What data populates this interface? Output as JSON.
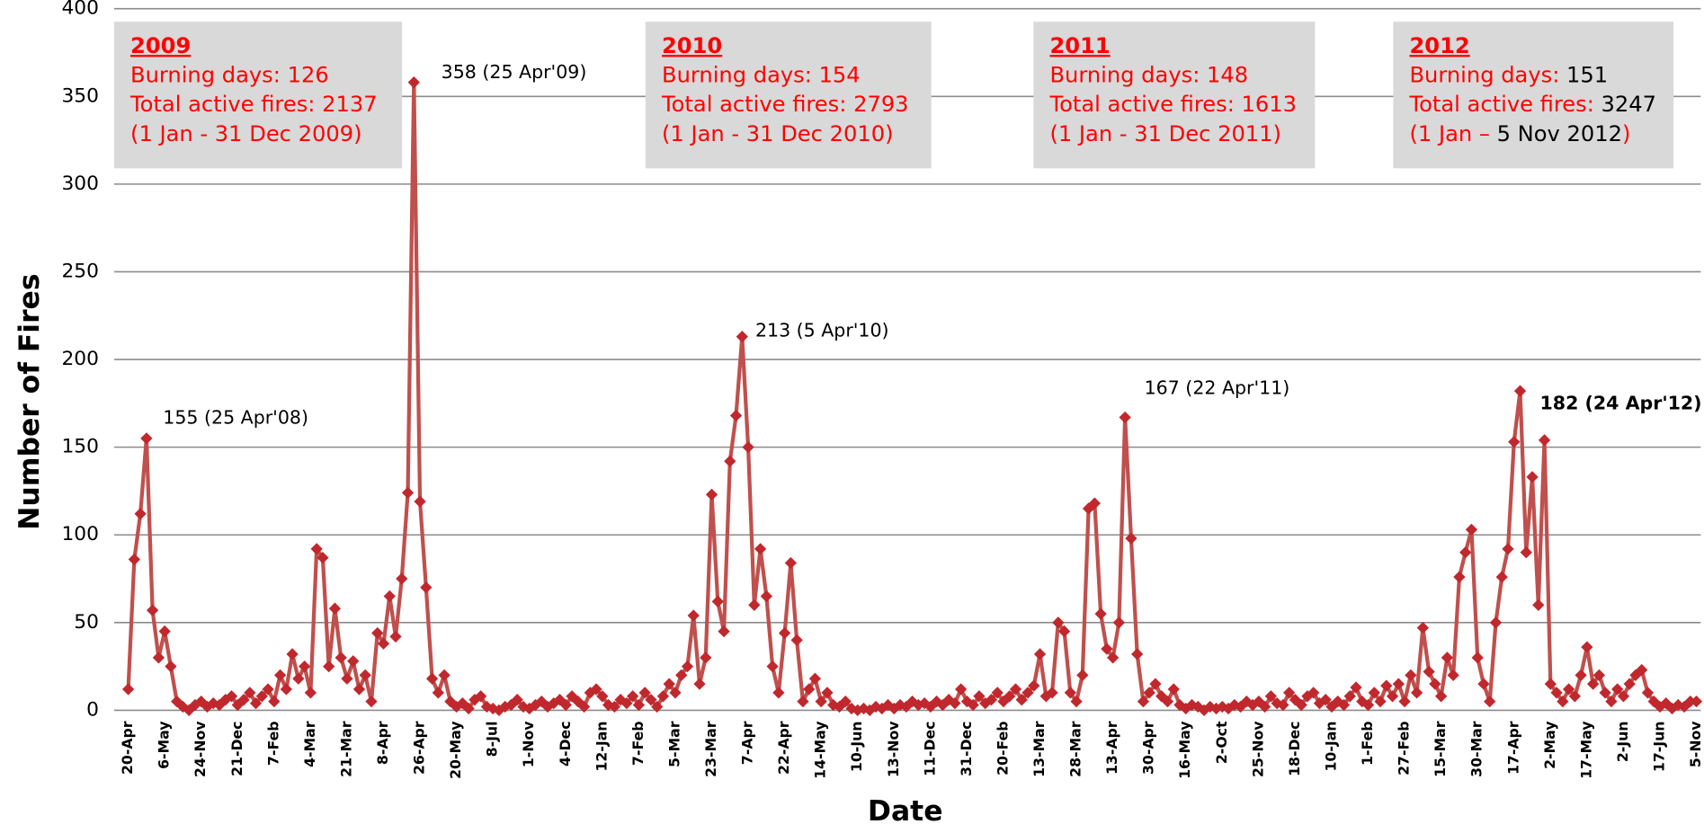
{
  "chart_data": {
    "type": "line",
    "color": "#c0282d",
    "line_color": "#c0504d",
    "xlabel": "Date",
    "ylabel": "Number of Fires",
    "ylim": [
      0,
      400
    ],
    "yticks": [
      0,
      50,
      100,
      150,
      200,
      250,
      300,
      350,
      400
    ],
    "grid": true,
    "categories": [
      "20-Apr",
      null,
      null,
      null,
      null,
      null,
      "6-May",
      null,
      null,
      null,
      null,
      null,
      "24-Nov",
      null,
      null,
      null,
      null,
      null,
      "21-Dec",
      null,
      null,
      null,
      null,
      null,
      "7-Feb",
      null,
      null,
      null,
      null,
      null,
      "4-Mar",
      null,
      null,
      null,
      null,
      null,
      "21-Mar",
      null,
      null,
      null,
      null,
      null,
      "8-Apr",
      null,
      null,
      null,
      null,
      null,
      "26-Apr",
      null,
      null,
      null,
      null,
      null,
      "20-May",
      null,
      null,
      null,
      null,
      null,
      "8-Jul",
      null,
      null,
      null,
      null,
      null,
      "1-Nov",
      null,
      null,
      null,
      null,
      null,
      "4-Dec",
      null,
      null,
      null,
      null,
      null,
      "12-Jan",
      null,
      null,
      null,
      null,
      null,
      "7-Feb",
      null,
      null,
      null,
      null,
      null,
      "5-Mar",
      null,
      null,
      null,
      null,
      null,
      "23-Mar",
      null,
      null,
      null,
      null,
      null,
      "7-Apr",
      null,
      null,
      null,
      null,
      null,
      "22-Apr",
      null,
      null,
      null,
      null,
      null,
      "14-May",
      null,
      null,
      null,
      null,
      null,
      "10-Jun",
      null,
      null,
      null,
      null,
      null,
      "13-Nov",
      null,
      null,
      null,
      null,
      null,
      "11-Dec",
      null,
      null,
      null,
      null,
      null,
      "31-Dec",
      null,
      null,
      null,
      null,
      null,
      "20-Feb",
      null,
      null,
      null,
      null,
      null,
      "13-Mar",
      null,
      null,
      null,
      null,
      null,
      "28-Mar",
      null,
      null,
      null,
      null,
      null,
      "13-Apr",
      null,
      null,
      null,
      null,
      null,
      "30-Apr",
      null,
      null,
      null,
      null,
      null,
      "16-May",
      null,
      null,
      null,
      null,
      null,
      "2-Oct",
      null,
      null,
      null,
      null,
      null,
      "25-Nov",
      null,
      null,
      null,
      null,
      null,
      "18-Dec",
      null,
      null,
      null,
      null,
      null,
      "10-Jan",
      null,
      null,
      null,
      null,
      null,
      "1-Feb",
      null,
      null,
      null,
      null,
      null,
      "27-Feb",
      null,
      null,
      null,
      null,
      null,
      "15-Mar",
      null,
      null,
      null,
      null,
      null,
      "30-Mar",
      null,
      null,
      null,
      null,
      null,
      "17-Apr",
      null,
      null,
      null,
      null,
      null,
      "2-May",
      null,
      null,
      null,
      null,
      null,
      "17-May",
      null,
      null,
      null,
      null,
      null,
      "2-Jun",
      null,
      null,
      null,
      null,
      null,
      "17-Jun",
      null,
      null,
      null,
      null,
      null,
      "5-Nov"
    ],
    "values": [
      12,
      86,
      112,
      155,
      57,
      30,
      45,
      25,
      5,
      2,
      0,
      3,
      5,
      2,
      4,
      3,
      6,
      8,
      3,
      6,
      10,
      4,
      8,
      12,
      5,
      20,
      12,
      32,
      18,
      25,
      10,
      92,
      87,
      25,
      58,
      30,
      18,
      28,
      12,
      20,
      5,
      44,
      38,
      65,
      42,
      75,
      124,
      358,
      119,
      70,
      18,
      10,
      20,
      5,
      2,
      4,
      1,
      6,
      8,
      2,
      1,
      0,
      2,
      3,
      6,
      2,
      1,
      3,
      5,
      2,
      4,
      6,
      3,
      8,
      5,
      2,
      10,
      12,
      8,
      3,
      2,
      6,
      4,
      8,
      3,
      10,
      6,
      2,
      8,
      15,
      10,
      20,
      25,
      54,
      15,
      30,
      123,
      62,
      45,
      142,
      168,
      213,
      150,
      60,
      92,
      65,
      25,
      10,
      44,
      84,
      40,
      5,
      12,
      18,
      5,
      10,
      3,
      2,
      5,
      1,
      0,
      1,
      0,
      2,
      1,
      3,
      1,
      3,
      2,
      5,
      3,
      4,
      2,
      5,
      3,
      6,
      4,
      12,
      5,
      3,
      8,
      4,
      6,
      10,
      5,
      8,
      12,
      6,
      10,
      14,
      32,
      8,
      10,
      50,
      45,
      10,
      5,
      20,
      115,
      118,
      55,
      35,
      30,
      50,
      167,
      98,
      32,
      5,
      10,
      15,
      8,
      5,
      12,
      3,
      1,
      3,
      2,
      0,
      2,
      1,
      2,
      1,
      3,
      2,
      5,
      3,
      5,
      2,
      8,
      4,
      3,
      10,
      6,
      3,
      8,
      10,
      4,
      6,
      2,
      5,
      3,
      8,
      13,
      5,
      3,
      10,
      5,
      14,
      8,
      15,
      5,
      20,
      10,
      47,
      22,
      15,
      8,
      30,
      20,
      76,
      90,
      103,
      30,
      15,
      5,
      50,
      76,
      92,
      153,
      182,
      90,
      133,
      60,
      154,
      15,
      10,
      5,
      12,
      8,
      20,
      36,
      15,
      20,
      10,
      5,
      12,
      8,
      15,
      20,
      23,
      10,
      5,
      2,
      4,
      1,
      3,
      2,
      5,
      5
    ],
    "annotations": [
      "155 (25 Apr'08)",
      "358 (25 Apr'09)",
      "213 (5 Apr'10)",
      "167 (22 Apr'11)",
      "182 (24 Apr'12)"
    ],
    "boxes": [
      {
        "year": "2009",
        "lines": [
          "Burning days: 126",
          "Total active fires: 2137",
          "(1 Jan - 31 Dec 2009)"
        ]
      },
      {
        "year": "2010",
        "lines": [
          "Burning days: 154",
          "Total active fires: 2793",
          "(1 Jan - 31 Dec 2010)"
        ]
      },
      {
        "year": "2011",
        "lines": [
          "Burning days: 148",
          "Total active fires: 1613",
          "(1 Jan - 31 Dec 2011)"
        ]
      },
      {
        "year": "2012",
        "lines": [
          [
            {
              "text": "Burning days: ",
              "color": "#ff0000"
            },
            {
              "text": "151",
              "color": "#000000"
            }
          ],
          [
            {
              "text": "Total active fires: ",
              "color": "#ff0000"
            },
            {
              "text": "3247",
              "color": "#000000"
            }
          ],
          [
            {
              "text": "(1 Jan – ",
              "color": "#ff0000"
            },
            {
              "text": "5 Nov 2012",
              "color": "#000000"
            },
            {
              "text": ")",
              "color": "#ff0000"
            }
          ]
        ]
      }
    ]
  }
}
